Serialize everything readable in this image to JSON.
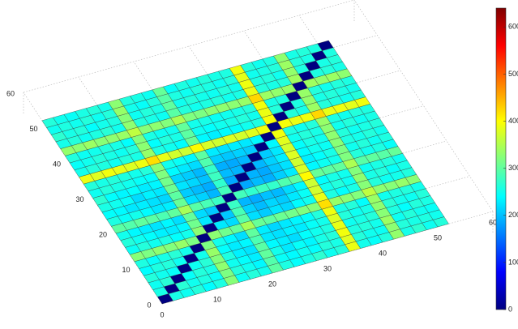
{
  "chart_data": {
    "type": "heatmap3d",
    "colormap": "jet",
    "clim": [
      0,
      640
    ],
    "xlim": [
      0,
      60
    ],
    "ylim": [
      0,
      60
    ],
    "xticks": [
      0,
      10,
      20,
      30,
      40,
      50,
      60
    ],
    "yticks": [
      0,
      10,
      20,
      30,
      40,
      50,
      60
    ],
    "colorbar_ticks": [
      0,
      100,
      200,
      300,
      400,
      500,
      600
    ],
    "x": [
      1,
      3,
      5,
      7,
      9,
      11,
      13,
      15,
      17,
      19,
      21,
      23,
      25,
      27,
      29,
      31,
      33,
      35,
      37,
      39,
      41,
      43,
      45,
      47,
      49,
      51
    ],
    "y": [
      1,
      3,
      5,
      7,
      9,
      11,
      13,
      15,
      17,
      19,
      21,
      23,
      25,
      27,
      29,
      31,
      33,
      35,
      37,
      39,
      41,
      43,
      45,
      47,
      49,
      51
    ],
    "z": [
      [
        0,
        255,
        248,
        262,
        240,
        258,
        325,
        246,
        262,
        251,
        298,
        258,
        242,
        256,
        268,
        249,
        262,
        388,
        252,
        244,
        261,
        332,
        254,
        268,
        249,
        262
      ],
      [
        255,
        0,
        265,
        250,
        258,
        244,
        318,
        262,
        249,
        236,
        292,
        245,
        238,
        250,
        241,
        262,
        255,
        380,
        262,
        250,
        247,
        328,
        262,
        255,
        258,
        250
      ],
      [
        248,
        265,
        0,
        244,
        262,
        255,
        330,
        250,
        241,
        230,
        301,
        252,
        226,
        244,
        235,
        255,
        262,
        392,
        258,
        262,
        251,
        338,
        248,
        262,
        250,
        245
      ],
      [
        262,
        250,
        244,
        0,
        248,
        265,
        322,
        258,
        232,
        224,
        296,
        238,
        230,
        218,
        241,
        250,
        258,
        385,
        249,
        255,
        262,
        326,
        258,
        241,
        262,
        256
      ],
      [
        240,
        258,
        262,
        248,
        0,
        252,
        335,
        241,
        228,
        236,
        288,
        226,
        221,
        232,
        228,
        244,
        251,
        378,
        262,
        248,
        255,
        330,
        265,
        252,
        248,
        262
      ],
      [
        258,
        244,
        255,
        265,
        252,
        0,
        318,
        252,
        236,
        220,
        300,
        230,
        215,
        226,
        235,
        241,
        262,
        390,
        255,
        262,
        241,
        336,
        250,
        258,
        262,
        251
      ],
      [
        325,
        318,
        330,
        322,
        335,
        318,
        0,
        328,
        310,
        302,
        345,
        305,
        298,
        308,
        312,
        320,
        326,
        420,
        335,
        328,
        322,
        360,
        330,
        325,
        334,
        328
      ],
      [
        246,
        262,
        250,
        258,
        241,
        252,
        328,
        0,
        226,
        218,
        295,
        220,
        208,
        224,
        215,
        238,
        250,
        386,
        258,
        241,
        256,
        325,
        262,
        248,
        252,
        260
      ],
      [
        262,
        249,
        241,
        232,
        228,
        236,
        310,
        226,
        0,
        205,
        285,
        212,
        198,
        215,
        208,
        226,
        245,
        372,
        250,
        262,
        248,
        330,
        255,
        262,
        244,
        255
      ],
      [
        251,
        236,
        230,
        224,
        236,
        220,
        302,
        218,
        205,
        0,
        276,
        195,
        188,
        202,
        196,
        218,
        236,
        368,
        241,
        255,
        250,
        322,
        248,
        256,
        262,
        248
      ],
      [
        298,
        292,
        301,
        296,
        288,
        300,
        345,
        295,
        285,
        276,
        0,
        282,
        270,
        278,
        272,
        290,
        298,
        402,
        305,
        298,
        302,
        348,
        296,
        300,
        295,
        304
      ],
      [
        258,
        245,
        252,
        238,
        226,
        230,
        305,
        220,
        212,
        195,
        282,
        0,
        185,
        198,
        190,
        210,
        228,
        375,
        236,
        248,
        252,
        320,
        262,
        250,
        258,
        244
      ],
      [
        242,
        238,
        226,
        230,
        221,
        215,
        298,
        208,
        198,
        188,
        270,
        185,
        0,
        192,
        186,
        205,
        222,
        370,
        230,
        241,
        255,
        318,
        250,
        262,
        249,
        258
      ],
      [
        256,
        250,
        244,
        218,
        232,
        226,
        308,
        224,
        215,
        202,
        278,
        198,
        192,
        0,
        195,
        212,
        230,
        378,
        238,
        250,
        246,
        326,
        258,
        252,
        262,
        250
      ],
      [
        268,
        241,
        235,
        241,
        228,
        235,
        312,
        215,
        208,
        196,
        272,
        190,
        186,
        195,
        0,
        208,
        226,
        372,
        241,
        255,
        250,
        330,
        262,
        248,
        256,
        262
      ],
      [
        249,
        262,
        255,
        250,
        244,
        241,
        320,
        238,
        226,
        218,
        290,
        210,
        205,
        212,
        208,
        0,
        236,
        382,
        250,
        262,
        255,
        328,
        250,
        262,
        248,
        255
      ],
      [
        262,
        255,
        262,
        258,
        251,
        262,
        326,
        250,
        245,
        236,
        298,
        228,
        222,
        230,
        226,
        236,
        0,
        392,
        258,
        250,
        262,
        335,
        256,
        250,
        262,
        258
      ],
      [
        388,
        380,
        392,
        385,
        378,
        390,
        420,
        386,
        372,
        368,
        402,
        375,
        370,
        378,
        372,
        382,
        392,
        0,
        395,
        388,
        392,
        425,
        386,
        390,
        384,
        392
      ],
      [
        252,
        262,
        258,
        249,
        262,
        255,
        335,
        258,
        250,
        241,
        305,
        236,
        230,
        238,
        241,
        250,
        258,
        395,
        0,
        262,
        255,
        338,
        262,
        258,
        250,
        262
      ],
      [
        244,
        250,
        262,
        255,
        248,
        262,
        328,
        241,
        262,
        255,
        298,
        248,
        241,
        250,
        255,
        262,
        250,
        388,
        262,
        0,
        258,
        332,
        255,
        262,
        256,
        250
      ],
      [
        261,
        247,
        251,
        262,
        255,
        241,
        322,
        256,
        248,
        250,
        302,
        252,
        255,
        246,
        250,
        255,
        262,
        392,
        255,
        258,
        0,
        335,
        262,
        250,
        262,
        258
      ],
      [
        332,
        328,
        338,
        326,
        330,
        336,
        360,
        325,
        330,
        322,
        348,
        320,
        318,
        326,
        330,
        328,
        335,
        425,
        338,
        332,
        335,
        0,
        340,
        332,
        338,
        330
      ],
      [
        254,
        262,
        248,
        258,
        265,
        250,
        330,
        262,
        255,
        248,
        296,
        262,
        250,
        258,
        262,
        250,
        256,
        386,
        262,
        255,
        262,
        340,
        0,
        258,
        262,
        255
      ],
      [
        268,
        255,
        262,
        241,
        252,
        258,
        325,
        248,
        262,
        256,
        300,
        250,
        262,
        252,
        248,
        262,
        250,
        390,
        258,
        262,
        250,
        332,
        258,
        0,
        255,
        262
      ],
      [
        249,
        258,
        250,
        262,
        248,
        262,
        334,
        252,
        244,
        262,
        295,
        258,
        249,
        262,
        256,
        248,
        262,
        384,
        250,
        256,
        262,
        338,
        262,
        255,
        0,
        258
      ],
      [
        262,
        250,
        245,
        256,
        262,
        251,
        328,
        260,
        255,
        248,
        304,
        244,
        258,
        250,
        262,
        255,
        258,
        392,
        262,
        250,
        258,
        330,
        255,
        262,
        258,
        0
      ]
    ]
  }
}
